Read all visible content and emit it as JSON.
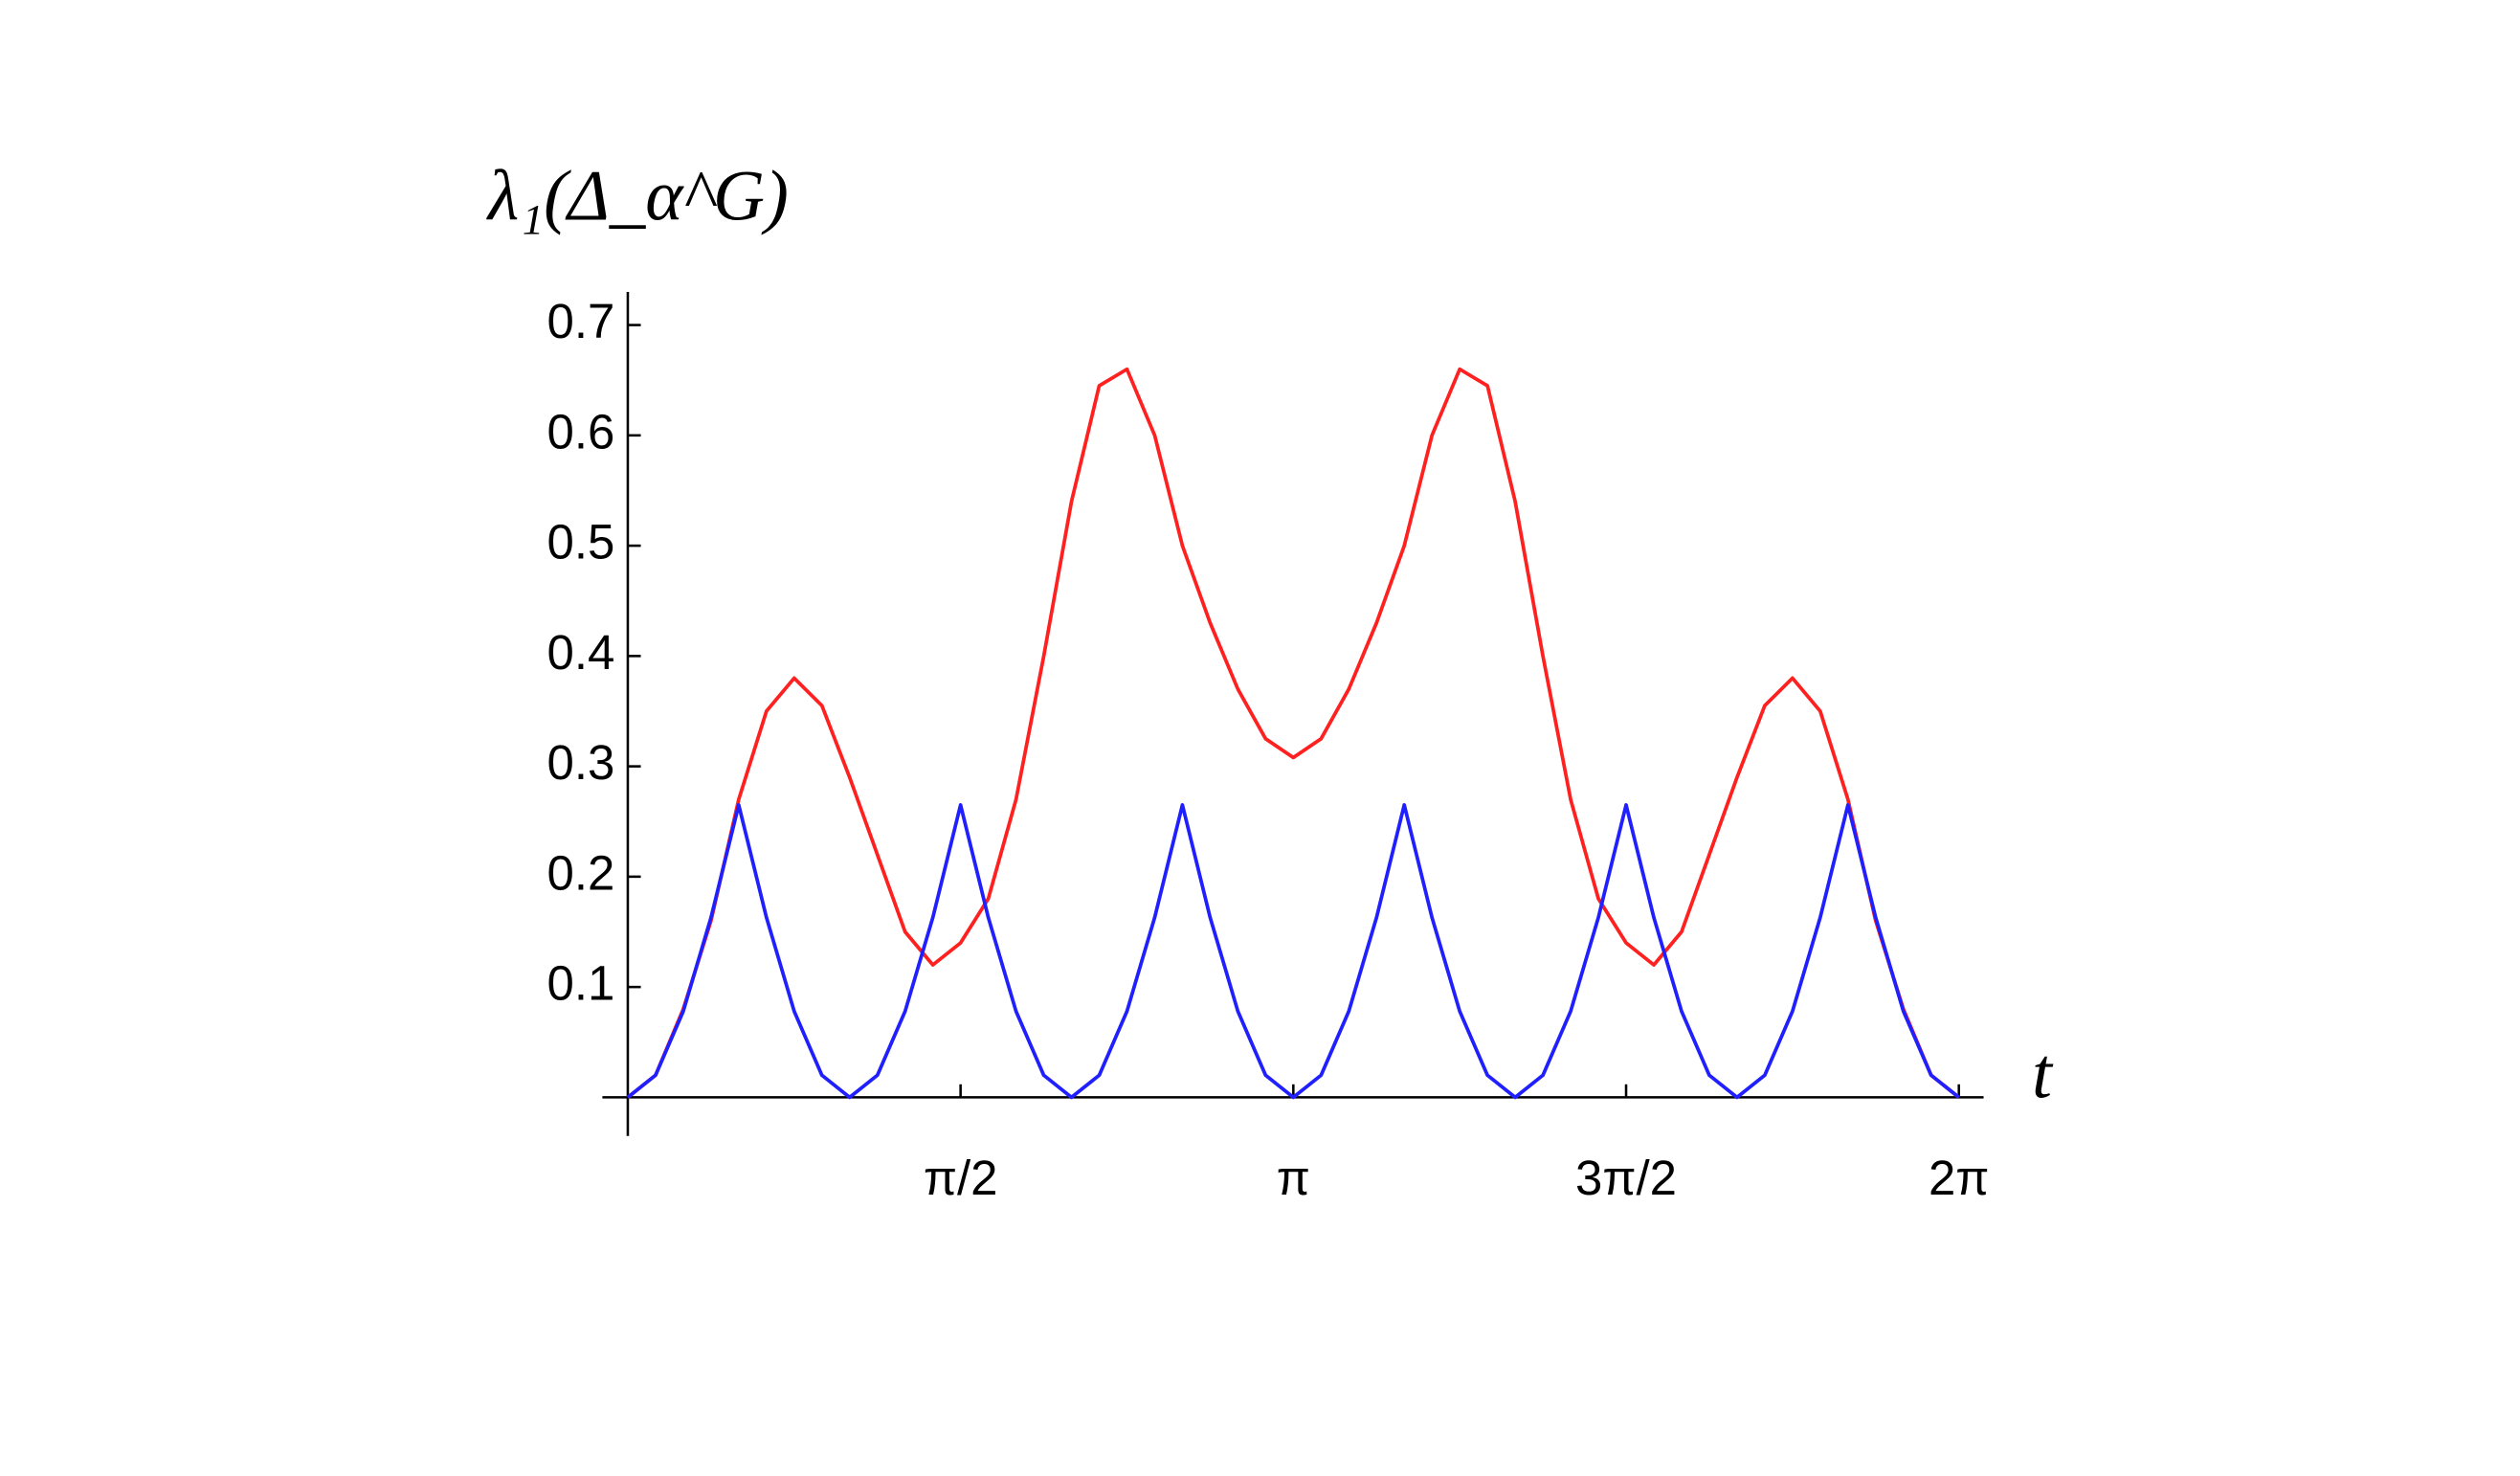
{
  "chart_data": {
    "type": "line",
    "y_label": "λ₁(Δ_α^G)",
    "x_label": "t",
    "x": [
      0,
      0.1309,
      0.2618,
      0.3927,
      0.5236,
      0.6545,
      0.7854,
      0.9163,
      1.0472,
      1.1781,
      1.309,
      1.4399,
      1.5708,
      1.7017,
      1.8326,
      1.9635,
      2.0944,
      2.2253,
      2.3562,
      2.4871,
      2.618,
      2.7489,
      2.8798,
      3.0107,
      3.1416,
      3.2725,
      3.4034,
      3.5343,
      3.6652,
      3.7961,
      3.927,
      4.0579,
      4.1888,
      4.3197,
      4.4506,
      4.5815,
      4.7124,
      4.8433,
      4.9742,
      5.1051,
      5.236,
      5.3669,
      5.4978,
      5.6287,
      5.7596,
      5.8905,
      6.0214,
      6.1523,
      6.2832
    ],
    "series": [
      {
        "color": "#ff2020",
        "values": [
          0,
          0.02,
          0.08,
          0.16,
          0.27,
          0.35,
          0.38,
          0.355,
          0.29,
          0.22,
          0.15,
          0.12,
          0.14,
          0.18,
          0.27,
          0.4,
          0.54,
          0.645,
          0.66,
          0.6,
          0.5,
          0.43,
          0.37,
          0.325,
          0.308,
          0.325,
          0.37,
          0.43,
          0.5,
          0.6,
          0.66,
          0.645,
          0.54,
          0.4,
          0.27,
          0.18,
          0.14,
          0.12,
          0.15,
          0.22,
          0.29,
          0.355,
          0.38,
          0.35,
          0.27,
          0.16,
          0.08,
          0.02,
          0
        ]
      },
      {
        "color": "#2020ff",
        "values": [
          0,
          0.02,
          0.078,
          0.163,
          0.265,
          0.163,
          0.078,
          0.02,
          0,
          0.02,
          0.078,
          0.163,
          0.265,
          0.163,
          0.078,
          0.02,
          0,
          0.02,
          0.078,
          0.163,
          0.265,
          0.163,
          0.078,
          0.02,
          0,
          0.02,
          0.078,
          0.163,
          0.265,
          0.163,
          0.078,
          0.02,
          0,
          0.02,
          0.078,
          0.163,
          0.265,
          0.163,
          0.078,
          0.02,
          0,
          0.02,
          0.078,
          0.163,
          0.265,
          0.163,
          0.078,
          0.02,
          0
        ]
      }
    ],
    "xlim": [
      -0.12,
      6.4
    ],
    "ylim": [
      -0.035,
      0.73
    ],
    "xticks": [
      {
        "value": 1.5708,
        "label": "π/2"
      },
      {
        "value": 3.1416,
        "label": "π"
      },
      {
        "value": 4.7124,
        "label": "3π/2"
      },
      {
        "value": 6.2832,
        "label": "2π"
      }
    ],
    "yticks": [
      0.1,
      0.2,
      0.3,
      0.4,
      0.5,
      0.6,
      0.7
    ]
  }
}
